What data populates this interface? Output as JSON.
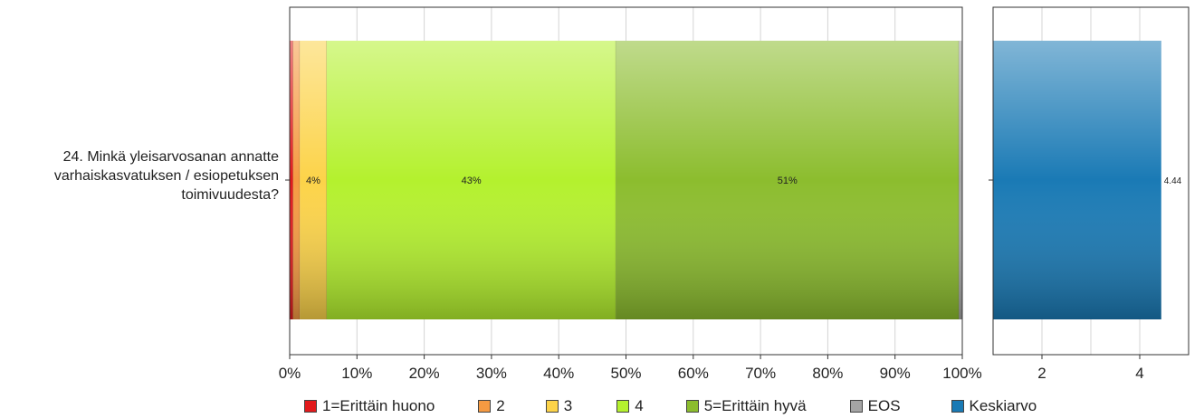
{
  "question": {
    "lines": [
      "24. Minkä yleisarvosanan annatte",
      "varhaiskasvatuksen / esiopetuksen",
      "toimivuudesta?"
    ]
  },
  "chart_data": [
    {
      "type": "bar",
      "orientation": "horizontal",
      "stacked": true,
      "category": "24. Minkä yleisarvosanan annatte varhaiskasvatuksen / esiopetuksen toimivuudesta?",
      "series": [
        {
          "name": "1=Erittäin huono",
          "value": 0.5,
          "color": "#e21a1c",
          "label": ""
        },
        {
          "name": "2",
          "value": 1.0,
          "color": "#f59a42",
          "label": ""
        },
        {
          "name": "3",
          "value": 4.0,
          "color": "#fcd349",
          "label": "4%"
        },
        {
          "name": "4",
          "value": 43.0,
          "color": "#b4f12e",
          "label": "43%"
        },
        {
          "name": "5=Erittäin hyvä",
          "value": 51.0,
          "color": "#8cbd2e",
          "label": "51%"
        },
        {
          "name": "EOS",
          "value": 0.5,
          "color": "#a5a5a5",
          "label": ""
        }
      ],
      "xlim": [
        0,
        100
      ],
      "xticks": [
        "0%",
        "10%",
        "20%",
        "30%",
        "40%",
        "50%",
        "60%",
        "70%",
        "80%",
        "90%",
        "100%"
      ],
      "grid": true
    },
    {
      "type": "bar",
      "orientation": "horizontal",
      "series": [
        {
          "name": "Keskiarvo",
          "value": 4.44,
          "color": "#1a7ab5",
          "label": "4.44"
        }
      ],
      "xlim": [
        1,
        5
      ],
      "xticks": [
        "2",
        "4"
      ],
      "grid": true
    }
  ],
  "legend": {
    "placement": "bottom",
    "items": [
      {
        "label": "1=Erittäin huono",
        "color": "#e21a1c"
      },
      {
        "label": "2",
        "color": "#f59a42"
      },
      {
        "label": "3",
        "color": "#fcd349"
      },
      {
        "label": "4",
        "color": "#b4f12e"
      },
      {
        "label": "5=Erittäin hyvä",
        "color": "#8cbd2e"
      },
      {
        "label": "EOS",
        "color": "#a5a5a5"
      },
      {
        "label": "Keskiarvo",
        "color": "#1a7ab5"
      }
    ]
  }
}
